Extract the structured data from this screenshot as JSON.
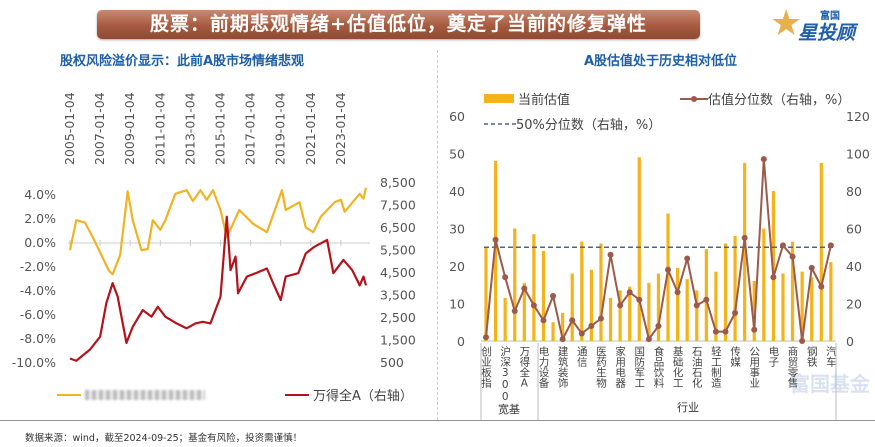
{
  "header": {
    "title": "股票：前期悲观情绪+估值低位，奠定了当前的修复弹性",
    "logo_small": "富国",
    "logo_big": "星投顾"
  },
  "watermark": "富国基金",
  "footer": "数据来源：wind，截至2024-09-25；基金有风险，投资需谨慎！",
  "colors": {
    "erp": "#f0b323",
    "index": "#b5121b",
    "bar": "#f5b21b",
    "pct_line": "#9b5a4a",
    "median": "#4f6480",
    "title_blue": "#1f5fa8"
  },
  "chart_data": [
    {
      "type": "line",
      "title": "股权风险溢价显示：此前A股市场情绪悲观",
      "x_tick_labels": [
        "2005-01-04",
        "2007-01-04",
        "2009-01-04",
        "2011-01-04",
        "2013-01-04",
        "2015-01-04",
        "2017-01-04",
        "2019-01-04",
        "2021-01-04",
        "2023-01-04"
      ],
      "y_left": {
        "range": [
          -10,
          4
        ],
        "ticks": [
          "-10.0%",
          "-8.0%",
          "-6.0%",
          "-4.0%",
          "-2.0%",
          "0.0%",
          "2.0%",
          "4.0%"
        ]
      },
      "y_right": {
        "range": [
          500,
          8500
        ],
        "ticks": [
          "500",
          "1,500",
          "2,500",
          "3,500",
          "4,500",
          "5,500",
          "6,500",
          "7,500",
          "8,500"
        ]
      },
      "legend_position": "bottom",
      "series": [
        {
          "name": "",
          "axis": "left",
          "points": [
            [
              "2005-01",
              -0.6
            ],
            [
              "2005-06",
              1.9
            ],
            [
              "2006-01",
              1.7
            ],
            [
              "2006-08",
              0.3
            ],
            [
              "2007-08",
              -2.3
            ],
            [
              "2007-11",
              -2.6
            ],
            [
              "2008-05",
              -1.0
            ],
            [
              "2008-11",
              4.3
            ],
            [
              "2009-03",
              1.9
            ],
            [
              "2009-10",
              -0.6
            ],
            [
              "2010-03",
              -0.5
            ],
            [
              "2010-07",
              1.9
            ],
            [
              "2011-01",
              1.1
            ],
            [
              "2011-05",
              1.9
            ],
            [
              "2012-01",
              4.1
            ],
            [
              "2012-10",
              4.4
            ],
            [
              "2013-03",
              3.5
            ],
            [
              "2013-09",
              4.4
            ],
            [
              "2014-02",
              3.6
            ],
            [
              "2014-07",
              4.4
            ],
            [
              "2015-01",
              2.75
            ],
            [
              "2015-06",
              0.5
            ],
            [
              "2015-11",
              1.6
            ],
            [
              "2016-04",
              2.75
            ],
            [
              "2017-03",
              1.6
            ],
            [
              "2018-02",
              0.9
            ],
            [
              "2019-02",
              4.4
            ],
            [
              "2019-05",
              2.75
            ],
            [
              "2020-04",
              3.4
            ],
            [
              "2020-09",
              1.3
            ],
            [
              "2021-03",
              0.9
            ],
            [
              "2021-09",
              2.2
            ],
            [
              "2022-08",
              3.4
            ],
            [
              "2023-01",
              3.6
            ],
            [
              "2023-04",
              2.6
            ],
            [
              "2024-04",
              4.1
            ],
            [
              "2024-07",
              3.7
            ],
            [
              "2024-09",
              4.6
            ]
          ]
        },
        {
          "name": "万得全A（右轴）",
          "axis": "right",
          "points": [
            [
              "2005-01",
              700
            ],
            [
              "2005-06",
              600
            ],
            [
              "2006-05",
              1100
            ],
            [
              "2007-01",
              1670
            ],
            [
              "2007-06",
              3170
            ],
            [
              "2007-11",
              4050
            ],
            [
              "2008-03",
              3450
            ],
            [
              "2008-10",
              1390
            ],
            [
              "2009-03",
              2110
            ],
            [
              "2009-11",
              2850
            ],
            [
              "2010-06",
              2560
            ],
            [
              "2010-11",
              3000
            ],
            [
              "2011-05",
              2560
            ],
            [
              "2012-02",
              2260
            ],
            [
              "2012-10",
              2040
            ],
            [
              "2013-05",
              2260
            ],
            [
              "2013-11",
              2330
            ],
            [
              "2014-05",
              2260
            ],
            [
              "2015-01",
              3450
            ],
            [
              "2015-06",
              7000
            ],
            [
              "2015-09",
              4630
            ],
            [
              "2016-01",
              5230
            ],
            [
              "2016-03",
              3600
            ],
            [
              "2016-10",
              4340
            ],
            [
              "2017-05",
              4490
            ],
            [
              "2018-02",
              4700
            ],
            [
              "2018-07",
              4040
            ],
            [
              "2019-01",
              3300
            ],
            [
              "2019-05",
              4340
            ],
            [
              "2020-03",
              4490
            ],
            [
              "2020-09",
              5370
            ],
            [
              "2021-04",
              5670
            ],
            [
              "2022-02",
              5970
            ],
            [
              "2022-07",
              4490
            ],
            [
              "2023-03",
              5080
            ],
            [
              "2023-10",
              4630
            ],
            [
              "2024-04",
              3950
            ],
            [
              "2024-07",
              4340
            ],
            [
              "2024-09",
              3950
            ]
          ]
        }
      ]
    },
    {
      "type": "bar",
      "title": "A股估值处于历史相对低位",
      "categories": [
        "创业板指",
        "",
        "沪深300",
        "",
        "万得全A",
        "",
        "电力设备",
        "",
        "建筑装饰",
        "",
        "通信",
        "",
        "医药生物",
        "",
        "家用电器",
        "",
        "国防军工",
        "",
        "食品饮料",
        "",
        "基础化工",
        "",
        "石油石化",
        "",
        "轻工制造",
        "",
        "传媒",
        "",
        "公用事业",
        "",
        "电子",
        "",
        "商贸零售",
        "",
        "钢铁",
        "",
        "汽车"
      ],
      "groups": [
        {
          "label": "宽基"
        },
        {
          "label": "行业"
        }
      ],
      "y_left": {
        "range": [
          0,
          60
        ],
        "ticks": [
          "0",
          "10",
          "20",
          "30",
          "40",
          "50",
          "60"
        ]
      },
      "y_right": {
        "range": [
          0,
          120
        ],
        "ticks": [
          "0",
          "20",
          "40",
          "60",
          "80",
          "100",
          "120"
        ]
      },
      "legend_position": "top",
      "series": [
        {
          "name": "当前估值",
          "type": "bar",
          "axis": "left",
          "values": [
            25,
            48,
            11.5,
            30,
            15.5,
            28.5,
            24,
            5,
            7.5,
            18,
            26.5,
            19,
            26,
            11.5,
            13.5,
            14.5,
            49,
            15.5,
            18,
            34,
            19.5,
            16.5,
            13.5,
            24.5,
            18.5,
            26,
            28,
            47.5,
            16,
            30,
            40,
            18,
            26.5,
            18.5,
            17,
            47.5,
            21
          ]
        },
        {
          "name": "估值分位数（右轴，%）",
          "type": "line",
          "axis": "right",
          "values": [
            2,
            54,
            34,
            16,
            28,
            19,
            11,
            24,
            1,
            11,
            4,
            8,
            12,
            46,
            19,
            26,
            22,
            1,
            8,
            38,
            26,
            44,
            19,
            22,
            5,
            5,
            15,
            55,
            6,
            97,
            34,
            51,
            45,
            0,
            39,
            29,
            51
          ]
        },
        {
          "name": "50%分位数（右轴，%）",
          "type": "dashed",
          "axis": "right",
          "value": 50
        }
      ]
    }
  ]
}
